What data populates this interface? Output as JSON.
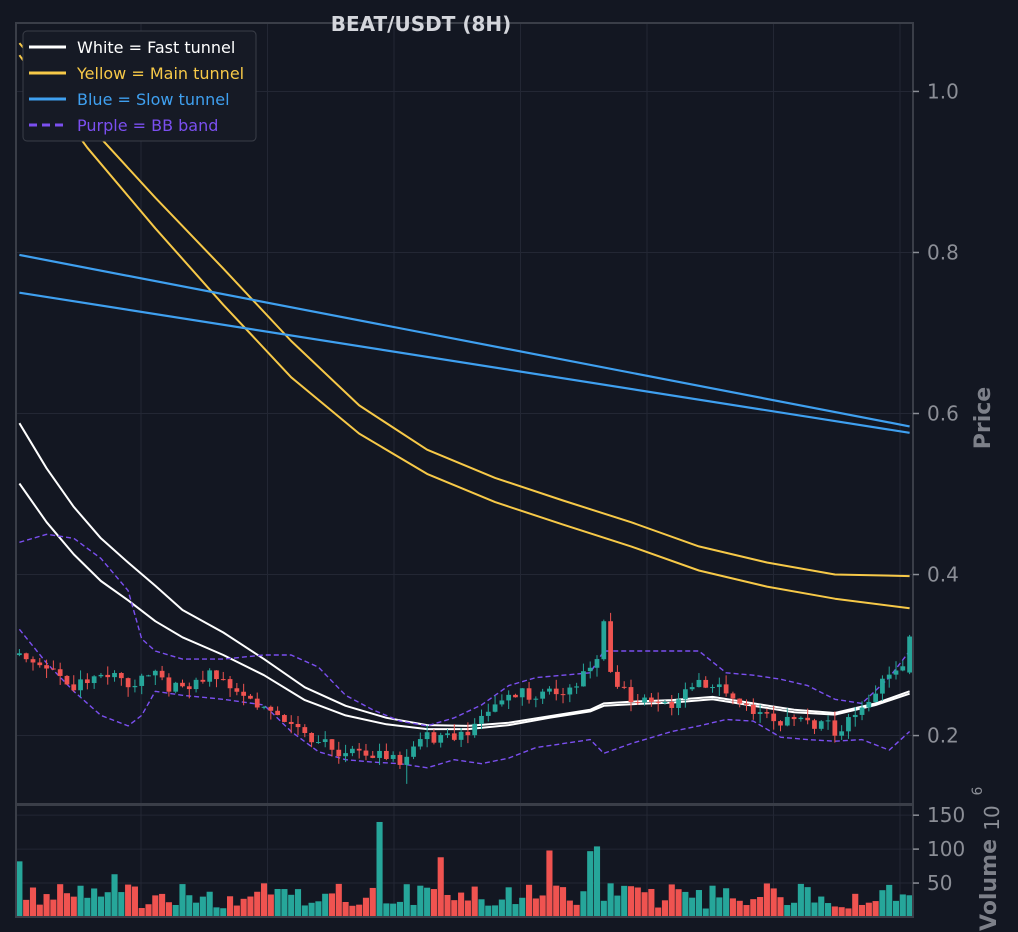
{
  "chart_data": [
    {
      "type": "candlestick",
      "title": "BEAT/USDT (8H)",
      "ylabel": "Price",
      "ylim": [
        0.115,
        1.085
      ],
      "yticks": [
        "0.2",
        "0.4",
        "0.6",
        "0.8",
        "1.0"
      ],
      "ytick_values": [
        0.2,
        0.4,
        0.6,
        0.8,
        1.0
      ],
      "grid": true,
      "legend_position": "top-left",
      "legend": [
        {
          "label": "White = Fast tunnel",
          "color": "#ffffff",
          "style": "solid"
        },
        {
          "label": "Yellow = Main tunnel",
          "color": "#f7c948",
          "style": "solid"
        },
        {
          "label": "Blue = Slow tunnel",
          "color": "#3fa0f0",
          "style": "solid"
        },
        {
          "label": "Purple = BB band",
          "color": "#7b4ff0",
          "style": "dashed"
        }
      ],
      "colors": {
        "up": "#26a69a",
        "down": "#ef5350",
        "background": "#131722",
        "fast": "#ffffff",
        "main": "#f7c948",
        "slow": "#3fa0f0",
        "bb": "#7b4ff0"
      },
      "candle_count": 132,
      "anchors": [
        [
          0,
          0.3
        ],
        [
          4,
          0.292
        ],
        [
          8,
          0.262
        ],
        [
          12,
          0.268
        ],
        [
          16,
          0.267
        ],
        [
          20,
          0.282
        ],
        [
          24,
          0.25
        ],
        [
          28,
          0.27
        ],
        [
          32,
          0.262
        ],
        [
          36,
          0.24
        ],
        [
          40,
          0.205
        ],
        [
          44,
          0.186
        ],
        [
          48,
          0.185
        ],
        [
          52,
          0.18
        ],
        [
          56,
          0.16
        ],
        [
          60,
          0.198
        ],
        [
          64,
          0.205
        ],
        [
          68,
          0.218
        ],
        [
          72,
          0.245
        ],
        [
          76,
          0.255
        ],
        [
          80,
          0.262
        ],
        [
          84,
          0.275
        ],
        [
          86,
          0.3
        ],
        [
          88,
          0.255
        ],
        [
          92,
          0.248
        ],
        [
          96,
          0.242
        ],
        [
          100,
          0.262
        ],
        [
          104,
          0.25
        ],
        [
          108,
          0.238
        ],
        [
          112,
          0.218
        ],
        [
          116,
          0.208
        ],
        [
          120,
          0.208
        ],
        [
          124,
          0.238
        ],
        [
          128,
          0.272
        ],
        [
          130,
          0.285
        ],
        [
          131,
          0.305
        ]
      ],
      "spikes": [
        [
          86,
          0.344,
          0.3
        ],
        [
          57,
          0.14,
          0.15
        ],
        [
          131,
          0.325,
          0.305
        ]
      ],
      "series": [
        {
          "name": "White = Fast tunnel",
          "x": [
            0,
            4,
            8,
            12,
            16,
            20,
            24,
            30,
            36,
            42,
            48,
            54,
            60,
            66,
            72,
            78,
            84,
            86,
            90,
            96,
            102,
            108,
            114,
            120,
            126,
            131
          ],
          "upper": [
            0.588,
            0.532,
            0.484,
            0.445,
            0.415,
            0.386,
            0.356,
            0.328,
            0.295,
            0.26,
            0.237,
            0.222,
            0.213,
            0.212,
            0.216,
            0.224,
            0.232,
            0.24,
            0.242,
            0.244,
            0.248,
            0.24,
            0.232,
            0.228,
            0.24,
            0.255
          ],
          "lower": [
            0.513,
            0.465,
            0.425,
            0.392,
            0.368,
            0.342,
            0.322,
            0.3,
            0.275,
            0.244,
            0.225,
            0.214,
            0.208,
            0.208,
            0.213,
            0.222,
            0.23,
            0.237,
            0.239,
            0.241,
            0.245,
            0.237,
            0.229,
            0.226,
            0.238,
            0.252
          ]
        },
        {
          "name": "Yellow = Main tunnel",
          "x": [
            0,
            10,
            20,
            30,
            40,
            50,
            60,
            70,
            80,
            90,
            100,
            110,
            120,
            131
          ],
          "upper": [
            1.06,
            0.96,
            0.868,
            0.78,
            0.69,
            0.61,
            0.555,
            0.52,
            0.492,
            0.465,
            0.435,
            0.415,
            0.4,
            0.398
          ],
          "lower": [
            1.045,
            0.93,
            0.83,
            0.735,
            0.645,
            0.575,
            0.525,
            0.49,
            0.462,
            0.435,
            0.405,
            0.385,
            0.37,
            0.358
          ]
        },
        {
          "name": "Blue = Slow tunnel",
          "x": [
            0,
            131
          ],
          "upper": [
            0.797,
            0.584
          ],
          "lower": [
            0.75,
            0.576
          ]
        },
        {
          "name": "Purple = BB band",
          "x": [
            0,
            4,
            8,
            12,
            16,
            18,
            20,
            24,
            30,
            36,
            40,
            44,
            48,
            52,
            56,
            60,
            64,
            68,
            72,
            76,
            80,
            84,
            86,
            90,
            96,
            100,
            104,
            108,
            112,
            116,
            120,
            124,
            128,
            131
          ],
          "upper": [
            0.44,
            0.45,
            0.445,
            0.42,
            0.38,
            0.32,
            0.305,
            0.295,
            0.295,
            0.3,
            0.3,
            0.285,
            0.25,
            0.232,
            0.218,
            0.212,
            0.222,
            0.238,
            0.262,
            0.272,
            0.275,
            0.278,
            0.305,
            0.305,
            0.305,
            0.305,
            0.278,
            0.275,
            0.27,
            0.262,
            0.245,
            0.24,
            0.272,
            0.305
          ],
          "lower": [
            0.332,
            0.29,
            0.255,
            0.225,
            0.212,
            0.225,
            0.255,
            0.25,
            0.245,
            0.238,
            0.205,
            0.18,
            0.17,
            0.167,
            0.165,
            0.16,
            0.17,
            0.165,
            0.172,
            0.185,
            0.19,
            0.195,
            0.178,
            0.19,
            0.205,
            0.212,
            0.22,
            0.218,
            0.198,
            0.195,
            0.193,
            0.195,
            0.182,
            0.205
          ]
        }
      ]
    },
    {
      "type": "bar",
      "ylabel": "Volume",
      "scale_label": "10",
      "scale_exponent": "6",
      "ylim": [
        0,
        165
      ],
      "yticks": [
        "50",
        "100",
        "150"
      ],
      "ytick_values": [
        50,
        100,
        150
      ],
      "bar_count": 132,
      "notable_values": [
        [
          0,
          82
        ],
        [
          14,
          63
        ],
        [
          53,
          140
        ],
        [
          62,
          88
        ],
        [
          78,
          98
        ],
        [
          84,
          97
        ],
        [
          85,
          104
        ],
        [
          96,
          48
        ],
        [
          116,
          44
        ],
        [
          131,
          32
        ]
      ]
    }
  ]
}
